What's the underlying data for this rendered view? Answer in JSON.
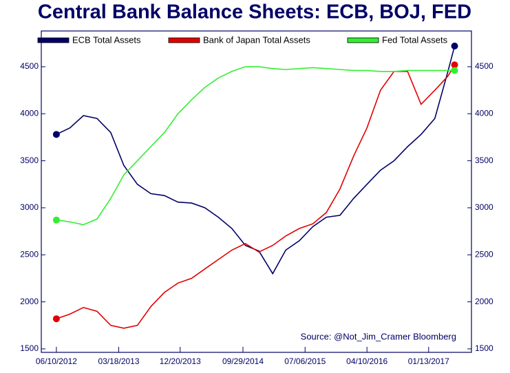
{
  "chart_data": {
    "type": "line",
    "title": "Central Bank Balance Sheets: ECB, BOJ, FED",
    "annotation": "Source: @Not_Jim_Cramer Bloomberg",
    "x": [
      "06/10/2012",
      "08/10/2012",
      "10/10/2012",
      "12/10/2012",
      "02/10/2013",
      "04/10/2013",
      "06/10/2013",
      "08/10/2013",
      "10/10/2013",
      "12/10/2013",
      "02/10/2014",
      "04/10/2014",
      "06/10/2014",
      "08/10/2014",
      "10/10/2014",
      "12/10/2014",
      "02/10/2015",
      "04/10/2015",
      "06/10/2015",
      "08/10/2015",
      "10/10/2015",
      "12/10/2015",
      "02/10/2016",
      "04/10/2016",
      "06/10/2016",
      "08/10/2016",
      "10/10/2016",
      "12/10/2016",
      "02/10/2017",
      "04/10/2017",
      "05/10/2017"
    ],
    "series": [
      {
        "name": "ECB Total Assets",
        "color": "#000066",
        "values": [
          3780,
          3850,
          3980,
          3950,
          3800,
          3450,
          3250,
          3150,
          3130,
          3060,
          3050,
          3000,
          2900,
          2780,
          2600,
          2540,
          2300,
          2550,
          2650,
          2800,
          2900,
          2920,
          3100,
          3250,
          3400,
          3500,
          3650,
          3780,
          3950,
          4450,
          4720
        ]
      },
      {
        "name": "Bank of Japan Total Assets",
        "color": "#e00000",
        "values": [
          1820,
          1870,
          1940,
          1900,
          1750,
          1720,
          1750,
          1950,
          2100,
          2200,
          2250,
          2350,
          2450,
          2550,
          2620,
          2530,
          2600,
          2700,
          2780,
          2830,
          2950,
          3200,
          3550,
          3850,
          4250,
          4450,
          4450,
          4100,
          4250,
          4400,
          4520
        ]
      },
      {
        "name": "Fed Total Assets",
        "color": "#33ee33",
        "values": [
          2870,
          2850,
          2820,
          2880,
          3100,
          3350,
          3500,
          3650,
          3800,
          4000,
          4150,
          4280,
          4380,
          4450,
          4500,
          4500,
          4480,
          4470,
          4480,
          4490,
          4480,
          4470,
          4460,
          4460,
          4450,
          4450,
          4460,
          4460,
          4460,
          4460,
          4460
        ]
      }
    ],
    "xlim": [
      "04/03/2012",
      "07/25/2017"
    ],
    "xticks": [
      "06/10/2012",
      "03/18/2013",
      "12/20/2013",
      "09/29/2014",
      "07/06/2015",
      "04/10/2016",
      "01/13/2017"
    ],
    "ylim": [
      1463,
      4880
    ],
    "yticks": [
      1500,
      2000,
      2500,
      3000,
      3500,
      4000,
      4500
    ]
  }
}
